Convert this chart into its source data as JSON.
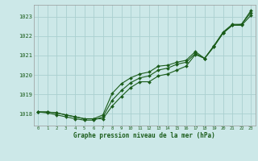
{
  "background_color": "#cce8e8",
  "grid_color": "#aad0d0",
  "line_color": "#1a5c1a",
  "marker_color": "#1a5c1a",
  "text_color": "#1a5c1a",
  "xlabel": "Graphe pression niveau de la mer (hPa)",
  "xlim": [
    -0.5,
    23.5
  ],
  "ylim": [
    1017.4,
    1023.6
  ],
  "yticks": [
    1018,
    1019,
    1020,
    1021,
    1022,
    1023
  ],
  "xticks": [
    0,
    1,
    2,
    3,
    4,
    5,
    6,
    7,
    8,
    9,
    10,
    11,
    12,
    13,
    14,
    15,
    16,
    17,
    18,
    19,
    20,
    21,
    22,
    23
  ],
  "series": [
    [
      1018.1,
      1018.1,
      1018.05,
      1017.95,
      1017.85,
      1017.75,
      1017.75,
      1017.75,
      1018.4,
      1018.9,
      1019.35,
      1019.65,
      1019.65,
      1019.95,
      1020.05,
      1020.25,
      1020.45,
      1021.05,
      1020.85,
      1021.45,
      1022.15,
      1022.55,
      1022.55,
      1023.05
    ],
    [
      1018.1,
      1018.05,
      1017.95,
      1017.85,
      1017.75,
      1017.68,
      1017.68,
      1017.85,
      1018.7,
      1019.2,
      1019.6,
      1019.85,
      1019.95,
      1020.25,
      1020.35,
      1020.55,
      1020.65,
      1021.1,
      1020.85,
      1021.45,
      1022.15,
      1022.55,
      1022.6,
      1023.2
    ],
    [
      1018.1,
      1018.1,
      1018.05,
      1017.95,
      1017.85,
      1017.75,
      1017.75,
      1017.95,
      1019.05,
      1019.55,
      1019.85,
      1020.05,
      1020.15,
      1020.45,
      1020.5,
      1020.65,
      1020.75,
      1021.2,
      1020.85,
      1021.5,
      1022.2,
      1022.6,
      1022.6,
      1023.3
    ]
  ]
}
